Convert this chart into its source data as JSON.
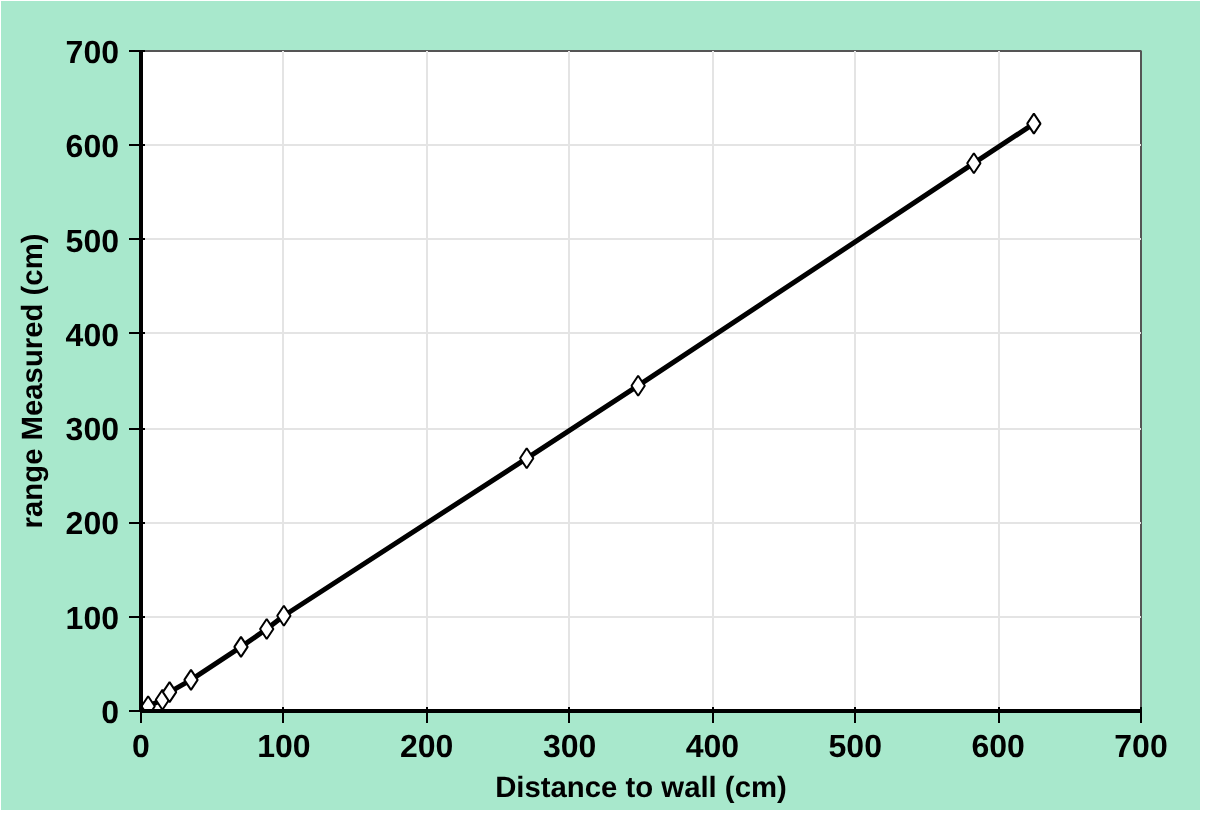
{
  "chart_data": {
    "type": "line",
    "xlabel": "Distance to wall (cm)",
    "ylabel": "range Measured (cm)",
    "x": [
      5,
      15,
      20,
      35,
      70,
      88,
      100,
      270,
      348,
      583,
      625
    ],
    "series": [
      {
        "color": "#000000",
        "values": [
          5,
          12,
          20,
          33,
          68,
          87,
          101,
          268,
          345,
          581,
          623
        ]
      }
    ],
    "xlim": [
      0,
      700
    ],
    "ylim": [
      0,
      700
    ],
    "xticks": [
      0,
      100,
      200,
      300,
      400,
      500,
      600,
      700
    ],
    "yticks": [
      0,
      100,
      200,
      300,
      400,
      500,
      600,
      700
    ],
    "grid": true,
    "marker": "diamond",
    "line_style": "solid"
  }
}
